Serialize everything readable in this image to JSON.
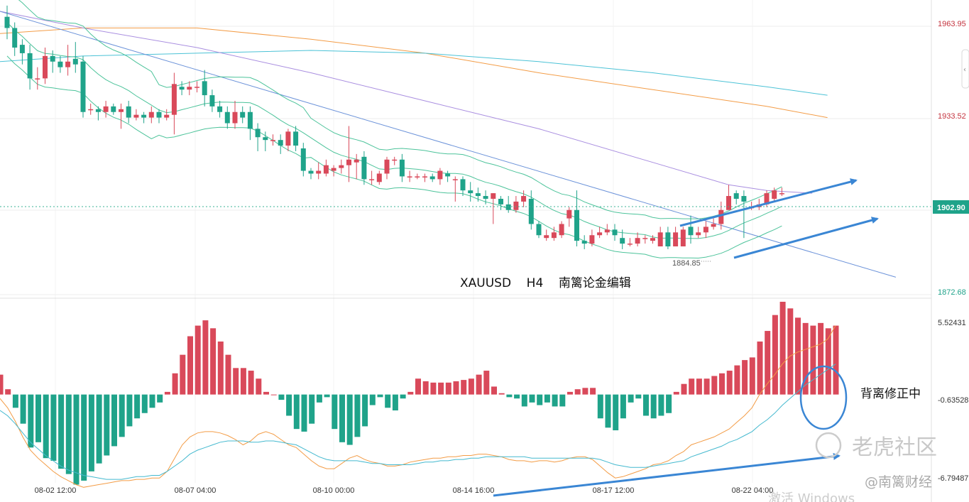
{
  "chart_data": [
    {
      "type": "candlestick",
      "pane": "price",
      "symbol": "XAUUSD",
      "timeframe": "H4",
      "annotation": "XAUUSD    H4    南篱论金编辑",
      "y_ticks": [
        "1963.95",
        "1933.52",
        "1872.68"
      ],
      "current_price": "1902.90",
      "low_label": "1884.85",
      "ylim": [
        1866,
        1972
      ],
      "x_ticks": [
        "08-02 12:00",
        "08-07 04:00",
        "08-10 00:00",
        "08-14 16:00",
        "08-17 12:00",
        "08-22 04:00"
      ],
      "candles": [
        [
          1966,
          1962,
          1970,
          1958
        ],
        [
          1962,
          1955,
          1964,
          1952
        ],
        [
          1956,
          1953,
          1958,
          1949
        ],
        [
          1953,
          1944,
          1956,
          1940
        ],
        [
          1944,
          1944,
          1948,
          1940
        ],
        [
          1944,
          1952,
          1955,
          1942
        ],
        [
          1952,
          1950,
          1954,
          1946
        ],
        [
          1950,
          1948,
          1952,
          1946
        ],
        [
          1948,
          1950,
          1956,
          1945
        ],
        [
          1951,
          1949,
          1957,
          1946
        ],
        [
          1950,
          1932,
          1952,
          1930
        ],
        [
          1933,
          1933,
          1935,
          1931
        ],
        [
          1933,
          1932,
          1934,
          1929
        ],
        [
          1932,
          1934,
          1936,
          1930
        ],
        [
          1934,
          1932,
          1935,
          1931
        ],
        [
          1932,
          1933,
          1935,
          1926
        ],
        [
          1934,
          1930,
          1936,
          1928
        ],
        [
          1930,
          1931,
          1933,
          1929
        ],
        [
          1931,
          1930,
          1932,
          1928
        ],
        [
          1930,
          1932,
          1934,
          1928
        ],
        [
          1932,
          1930,
          1933,
          1928
        ],
        [
          1930,
          1931,
          1933,
          1929
        ],
        [
          1931,
          1942,
          1946,
          1924
        ],
        [
          1941,
          1940,
          1943,
          1938
        ],
        [
          1940,
          1941,
          1943,
          1938
        ],
        [
          1941,
          1941,
          1943,
          1939
        ],
        [
          1943,
          1938,
          1947,
          1934
        ],
        [
          1938,
          1934,
          1940,
          1932
        ],
        [
          1934,
          1932,
          1936,
          1930
        ],
        [
          1932,
          1928,
          1934,
          1926
        ],
        [
          1928,
          1932,
          1936,
          1926
        ],
        [
          1932,
          1930,
          1934,
          1928
        ],
        [
          1932,
          1926,
          1934,
          1922
        ],
        [
          1926,
          1923,
          1928,
          1918
        ],
        [
          1923,
          1922,
          1925,
          1918
        ],
        [
          1922,
          1922,
          1924,
          1920
        ],
        [
          1922,
          1920,
          1924,
          1917
        ],
        [
          1920,
          1925,
          1926,
          1918
        ],
        [
          1925,
          1920,
          1927,
          1918
        ],
        [
          1919,
          1911,
          1921,
          1909
        ],
        [
          1911,
          1910,
          1912,
          1908
        ],
        [
          1910,
          1911,
          1914,
          1908
        ],
        [
          1910,
          1913,
          1915,
          1909
        ],
        [
          1911,
          1912,
          1913,
          1909
        ],
        [
          1912,
          1913,
          1915,
          1910
        ],
        [
          1913,
          1915,
          1927,
          1907
        ],
        [
          1914,
          1915,
          1917,
          1908
        ],
        [
          1916,
          1908,
          1918,
          1906
        ],
        [
          1908,
          1908,
          1911,
          1906
        ],
        [
          1907,
          1910,
          1911,
          1906
        ],
        [
          1910,
          1915,
          1916,
          1908
        ],
        [
          1915,
          1915,
          1916,
          1913
        ],
        [
          1915,
          1909,
          1917,
          1907
        ],
        [
          1909,
          1909,
          1911,
          1907
        ],
        [
          1909,
          1909,
          1910,
          1908
        ],
        [
          1909,
          1909,
          1910,
          1907
        ],
        [
          1909,
          1908,
          1910,
          1907
        ],
        [
          1908,
          1911,
          1912,
          1906
        ],
        [
          1910,
          1909,
          1911,
          1907
        ],
        [
          1908,
          1908,
          1909,
          1900
        ],
        [
          1908,
          1904,
          1909,
          1902
        ],
        [
          1904,
          1903,
          1907,
          1900
        ],
        [
          1903,
          1902,
          1905,
          1900
        ],
        [
          1902,
          1901,
          1904,
          1899
        ],
        [
          1901,
          1903,
          1903,
          1892
        ],
        [
          1901,
          1899,
          1902,
          1897
        ],
        [
          1899,
          1897,
          1902,
          1896
        ],
        [
          1897,
          1900,
          1902,
          1896
        ],
        [
          1900,
          1902,
          1904,
          1898
        ],
        [
          1901,
          1892,
          1904,
          1890
        ],
        [
          1892,
          1888,
          1893,
          1887
        ],
        [
          1887,
          1888,
          1890,
          1886
        ],
        [
          1887,
          1889,
          1891,
          1886
        ],
        [
          1888,
          1892,
          1893,
          1887
        ],
        [
          1894,
          1897,
          1898,
          1891
        ],
        [
          1897,
          1886,
          1904,
          1884
        ],
        [
          1886,
          1885,
          1888,
          1883
        ],
        [
          1885,
          1888,
          1890,
          1884
        ],
        [
          1888,
          1889,
          1891,
          1887
        ],
        [
          1889,
          1890,
          1892,
          1888
        ],
        [
          1890,
          1888,
          1892,
          1886
        ],
        [
          1887,
          1885,
          1890,
          1883
        ],
        [
          1885,
          1885,
          1887,
          1884
        ],
        [
          1885,
          1887,
          1889,
          1884
        ],
        [
          1887,
          1887,
          1888,
          1885
        ],
        [
          1886,
          1887,
          1888,
          1885
        ],
        [
          1884,
          1889,
          1891,
          1884
        ],
        [
          1889,
          1884,
          1891,
          1883
        ],
        [
          1884,
          1889,
          1891,
          1884
        ],
        [
          1884,
          1890,
          1891,
          1884
        ],
        [
          1891,
          1888,
          1895,
          1885
        ],
        [
          1888,
          1889,
          1891,
          1887
        ],
        [
          1889,
          1891,
          1893,
          1887
        ],
        [
          1891,
          1892,
          1894,
          1890
        ],
        [
          1892,
          1897,
          1900,
          1890
        ],
        [
          1897,
          1902,
          1906,
          1898
        ],
        [
          1903,
          1901,
          1904,
          1899
        ],
        [
          1902,
          1900,
          1904,
          1887
        ],
        [
          1898,
          1898,
          1900,
          1897
        ],
        [
          1898,
          1899,
          1901,
          1897
        ],
        [
          1899,
          1903,
          1904,
          1898
        ],
        [
          1901,
          1904,
          1905,
          1900
        ],
        [
          1903,
          1903,
          1905,
          1902
        ]
      ],
      "overlays": [
        "bollinger-upper",
        "bollinger-middle",
        "bollinger-lower",
        "ma-purple",
        "ma-orange",
        "ma-cyan",
        "trendline-blue"
      ]
    },
    {
      "type": "bar",
      "pane": "macd",
      "y_ticks": [
        "5.52431",
        "-0.63528",
        "-6.79487"
      ],
      "ylim": [
        -7.2,
        7.0
      ],
      "annotation": "背离修正中",
      "histogram": [
        1.5,
        0.4,
        -1.0,
        -2.2,
        -4.0,
        -3.6,
        -4.8,
        -5.0,
        -5.6,
        -6.0,
        -6.8,
        -6.5,
        -5.8,
        -5.2,
        -4.6,
        -3.9,
        -3.2,
        -2.4,
        -1.8,
        -1.4,
        -1.0,
        -0.6,
        0.2,
        1.6,
        3.0,
        4.4,
        5.2,
        5.6,
        5.0,
        4.0,
        3.0,
        2.0,
        2.0,
        1.8,
        1.2,
        0.2,
        0.0,
        -0.4,
        -1.6,
        -2.6,
        -2.8,
        -2.2,
        -0.6,
        -0.2,
        -2.6,
        -3.6,
        -3.8,
        -3.2,
        -2.4,
        -0.8,
        -0.2,
        -1.0,
        -1.2,
        -0.3,
        0.2,
        1.2,
        1.0,
        0.9,
        0.9,
        0.9,
        1.0,
        1.1,
        1.2,
        1.5,
        1.8,
        0.6,
        0.1,
        -0.2,
        -0.3,
        -0.9,
        -0.6,
        -0.8,
        -0.6,
        -0.9,
        -0.9,
        0.2,
        0.4,
        0.5,
        0.5,
        -1.8,
        -2.5,
        -2.7,
        -1.8,
        -0.6,
        -0.3,
        -1.6,
        -1.8,
        -1.6,
        -1.4,
        0.2,
        0.8,
        1.2,
        1.2,
        1.2,
        1.4,
        1.6,
        1.8,
        2.2,
        2.6,
        2.8,
        4.0,
        4.8,
        6.0,
        7.0,
        6.5,
        5.8,
        5.4,
        5.2,
        5.4,
        5.0,
        5.2
      ],
      "dif_line": [
        -0.3,
        -1.0,
        -2.0,
        -3.2,
        -4.2,
        -4.8,
        -5.3,
        -5.8,
        -6.2,
        -6.5,
        -6.8,
        -7.0,
        -6.9,
        -6.8,
        -6.7,
        -6.6,
        -6.5,
        -6.5,
        -6.4,
        -6.4,
        -6.3,
        -6.3,
        -5.8,
        -4.8,
        -3.8,
        -3.2,
        -2.9,
        -2.8,
        -2.8,
        -2.9,
        -3.1,
        -3.4,
        -3.8,
        -3.5,
        -3.0,
        -2.8,
        -3.0,
        -3.4,
        -3.8,
        -4.0,
        -4.5,
        -5.0,
        -5.4,
        -5.6,
        -5.6,
        -5.2,
        -4.8,
        -4.6,
        -4.9,
        -5.1,
        -5.2,
        -5.4,
        -5.4,
        -5.3,
        -5.1,
        -5.0,
        -4.9,
        -4.8,
        -4.8,
        -4.7,
        -4.7,
        -4.6,
        -4.6,
        -4.5,
        -4.5,
        -4.6,
        -4.7,
        -4.9,
        -5.0,
        -5.0,
        -5.1,
        -5.0,
        -5.0,
        -5.1,
        -5.0,
        -4.8,
        -4.7,
        -4.7,
        -4.9,
        -5.4,
        -5.9,
        -6.3,
        -6.2,
        -6.0,
        -5.8,
        -5.6,
        -5.3,
        -5.2,
        -5.0,
        -4.6,
        -4.3,
        -3.8,
        -3.6,
        -3.4,
        -3.2,
        -2.9,
        -2.6,
        -2.1,
        -1.6,
        -1.0,
        0.0,
        0.8,
        1.5,
        2.3,
        2.9,
        3.2,
        3.4,
        3.6,
        3.8,
        4.2,
        5.2
      ],
      "dea_line": [
        -1.2,
        -1.6,
        -2.2,
        -2.9,
        -3.6,
        -4.1,
        -4.6,
        -5.0,
        -5.4,
        -5.7,
        -5.9,
        -6.1,
        -6.2,
        -6.3,
        -6.4,
        -6.4,
        -6.4,
        -6.3,
        -6.2,
        -6.2,
        -6.1,
        -6.1,
        -5.8,
        -5.4,
        -5.0,
        -4.5,
        -4.2,
        -4.0,
        -3.8,
        -3.6,
        -3.5,
        -3.5,
        -3.5,
        -3.6,
        -3.6,
        -3.5,
        -3.5,
        -3.6,
        -3.7,
        -3.8,
        -4.1,
        -4.4,
        -4.7,
        -4.9,
        -5.0,
        -5.0,
        -5.0,
        -5.0,
        -5.1,
        -5.2,
        -5.2,
        -5.3,
        -5.3,
        -5.3,
        -5.3,
        -5.2,
        -5.1,
        -5.1,
        -5.0,
        -5.0,
        -4.9,
        -4.9,
        -4.8,
        -4.8,
        -4.7,
        -4.7,
        -4.7,
        -4.7,
        -4.7,
        -4.7,
        -4.8,
        -4.8,
        -4.8,
        -4.8,
        -4.8,
        -4.8,
        -4.8,
        -4.8,
        -4.8,
        -4.9,
        -5.1,
        -5.3,
        -5.4,
        -5.5,
        -5.5,
        -5.5,
        -5.4,
        -5.3,
        -5.2,
        -5.1,
        -5.0,
        -4.7,
        -4.5,
        -4.3,
        -4.1,
        -3.9,
        -3.6,
        -3.4,
        -3.1,
        -2.8,
        -2.3,
        -1.9,
        -1.4,
        -0.8,
        -0.3,
        0.2,
        0.7,
        1.1,
        1.5,
        1.9,
        2.3
      ]
    }
  ],
  "watermarks": {
    "brand": "老虎社区",
    "author": "@南篱财经",
    "windows": "激活 Windows"
  },
  "colors": {
    "up": "#d9495a",
    "down": "#1fa38a",
    "trend_arrow": "#3a86d4",
    "boll": "#4cc39a",
    "ma_purple": "#a98ee0",
    "ma_orange": "#f39c46",
    "ma_cyan": "#4bc2d6",
    "trendline": "#6b92d9",
    "dif": "#f39c46",
    "dea": "#44b9cf",
    "axis_red": "#c4343f",
    "axis_green": "#1fa38a",
    "circle": "#3a86d4",
    "grid": "#ececec"
  }
}
